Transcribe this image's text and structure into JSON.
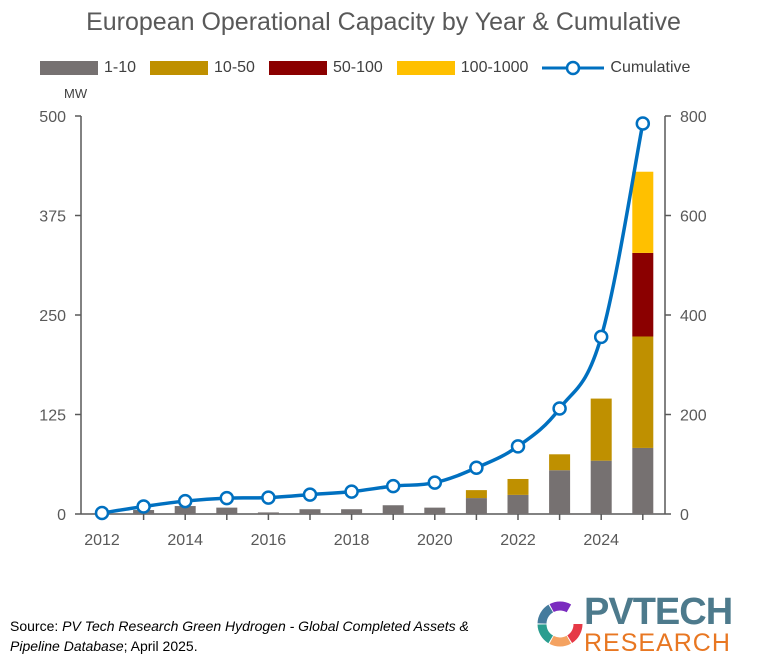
{
  "chart_data": {
    "type": "stacked-bar-line",
    "title": "European Operational Capacity by Year & Cumulative",
    "units_label": "MW",
    "x_tick_labels": [
      "2012",
      "2014",
      "2016",
      "2018",
      "2020",
      "2022",
      "2024"
    ],
    "years": [
      2012,
      2013,
      2014,
      2015,
      2016,
      2017,
      2018,
      2019,
      2020,
      2021,
      2022,
      2023,
      2024,
      2025
    ],
    "series": [
      {
        "name": "1-10",
        "color": "#767171",
        "values": [
          1,
          5,
          10,
          8,
          2,
          6,
          6,
          11,
          8,
          20,
          24,
          55,
          67,
          83
        ]
      },
      {
        "name": "10-50",
        "color": "#bf9000",
        "values": [
          0,
          0,
          0,
          0,
          0,
          0,
          0,
          0,
          0,
          10,
          20,
          20,
          78,
          140
        ]
      },
      {
        "name": "50-100",
        "color": "#8b0000",
        "values": [
          0,
          0,
          0,
          0,
          0,
          0,
          0,
          0,
          0,
          0,
          0,
          0,
          0,
          105
        ]
      },
      {
        "name": "100-1000",
        "color": "#ffc000",
        "values": [
          0,
          0,
          0,
          0,
          0,
          0,
          0,
          0,
          0,
          0,
          0,
          0,
          0,
          102
        ]
      }
    ],
    "cumulative": {
      "name": "Cumulative",
      "color": "#0070c0",
      "values": [
        2,
        15,
        26,
        32,
        33,
        39,
        45,
        56,
        63,
        93,
        136,
        212,
        356,
        785
      ]
    },
    "y_left": {
      "min": 0,
      "max": 500,
      "ticks": [
        0,
        125,
        250,
        375,
        500
      ]
    },
    "y_right": {
      "min": 0,
      "max": 800,
      "ticks": [
        0,
        200,
        400,
        600,
        800
      ]
    },
    "legend_position": "top"
  },
  "legend": {
    "items": [
      {
        "label": "1-10",
        "color": "#767171"
      },
      {
        "label": "10-50",
        "color": "#bf9000"
      },
      {
        "label": "50-100",
        "color": "#8b0000"
      },
      {
        "label": "100-1000",
        "color": "#ffc000"
      }
    ],
    "line_label": "Cumulative"
  },
  "source": {
    "prefix": "Source: ",
    "italic": "PV Tech Research Green Hydrogen - Global Completed Assets & Pipeline Database",
    "suffix": "; April 2025."
  },
  "logo": {
    "line1": "PVTECH",
    "line2": "RESEARCH"
  }
}
